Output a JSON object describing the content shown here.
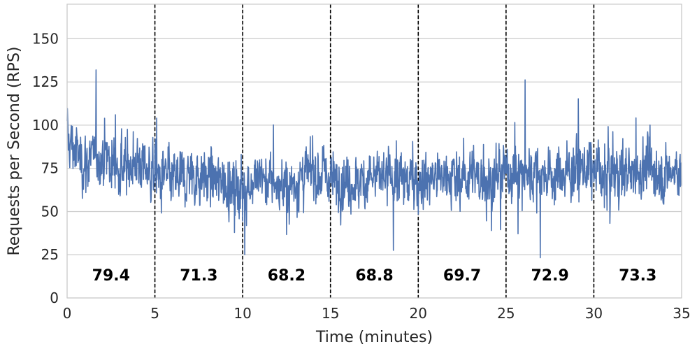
{
  "chart_data": {
    "type": "line",
    "title": "",
    "xlabel": "Time (minutes)",
    "ylabel": "Requests per Second (RPS)",
    "xlim": [
      0,
      35
    ],
    "ylim": [
      0,
      170
    ],
    "xticks": [
      0,
      5,
      10,
      15,
      20,
      25,
      30,
      35
    ],
    "yticks": [
      0,
      25,
      50,
      75,
      100,
      125,
      150
    ],
    "grid": true,
    "legend": "none",
    "line_color": "#4c72b0",
    "segment_boundaries": [
      5,
      10,
      15,
      20,
      25,
      30
    ],
    "segment_labels": [
      {
        "x_center": 2.5,
        "text": "79.4"
      },
      {
        "x_center": 7.5,
        "text": "71.3"
      },
      {
        "x_center": 12.5,
        "text": "68.2"
      },
      {
        "x_center": 17.5,
        "text": "68.8"
      },
      {
        "x_center": 22.5,
        "text": "69.7"
      },
      {
        "x_center": 27.5,
        "text": "72.9"
      },
      {
        "x_center": 32.5,
        "text": "73.3"
      }
    ],
    "segment_means": [
      79.4,
      71.3,
      68.2,
      68.8,
      69.7,
      72.9,
      73.3
    ],
    "series": [
      {
        "values_per_minute_start": [
          92,
          78,
          83,
          74,
          80,
          70,
          68,
          72,
          70,
          66,
          65,
          70,
          64,
          67,
          72,
          70,
          66,
          68,
          70,
          69,
          68,
          70,
          71,
          70,
          69,
          74,
          72,
          73,
          71,
          75,
          74,
          72,
          73,
          75,
          72,
          74
        ]
      }
    ]
  }
}
